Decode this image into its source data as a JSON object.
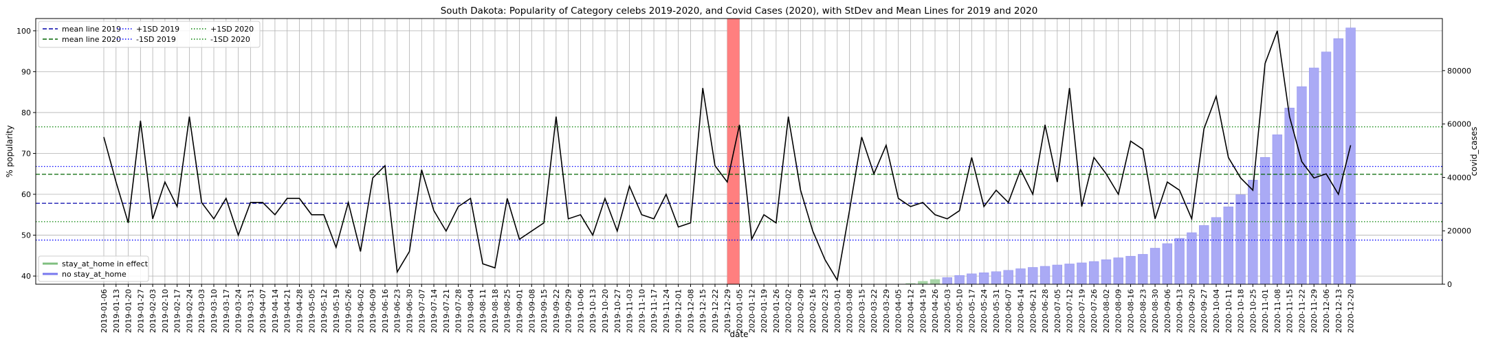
{
  "chart_data": {
    "type": "line",
    "title": "South Dakota: Popularity of Category celebs 2019-2020, and Covid Cases (2020), with StDev and Mean Lines for 2019 and 2020",
    "xlabel": "date",
    "ylabel": "% popularity",
    "y2label": "covid_cases",
    "ylim": [
      38,
      103
    ],
    "y2lim": [
      0,
      99500
    ],
    "yticks": [
      40,
      50,
      60,
      70,
      80,
      90,
      100
    ],
    "y2ticks": [
      0,
      20000,
      40000,
      60000,
      80000
    ],
    "dates": [
      "2019-01-06",
      "2019-01-13",
      "2019-01-20",
      "2019-01-27",
      "2019-02-03",
      "2019-02-10",
      "2019-02-17",
      "2019-02-24",
      "2019-03-03",
      "2019-03-10",
      "2019-03-17",
      "2019-03-24",
      "2019-03-31",
      "2019-04-07",
      "2019-04-14",
      "2019-04-21",
      "2019-04-28",
      "2019-05-05",
      "2019-05-12",
      "2019-05-19",
      "2019-05-26",
      "2019-06-02",
      "2019-06-09",
      "2019-06-16",
      "2019-06-23",
      "2019-06-30",
      "2019-07-07",
      "2019-07-14",
      "2019-07-21",
      "2019-07-28",
      "2019-08-04",
      "2019-08-11",
      "2019-08-18",
      "2019-08-25",
      "2019-09-01",
      "2019-09-08",
      "2019-09-15",
      "2019-09-22",
      "2019-09-29",
      "2019-10-06",
      "2019-10-13",
      "2019-10-20",
      "2019-10-27",
      "2019-11-03",
      "2019-11-10",
      "2019-11-17",
      "2019-11-24",
      "2019-12-01",
      "2019-12-08",
      "2019-12-15",
      "2019-12-22",
      "2019-12-29",
      "2020-01-05",
      "2020-01-12",
      "2020-01-19",
      "2020-01-26",
      "2020-02-02",
      "2020-02-09",
      "2020-02-16",
      "2020-02-23",
      "2020-03-01",
      "2020-03-08",
      "2020-03-15",
      "2020-03-22",
      "2020-03-29",
      "2020-04-05",
      "2020-04-12",
      "2020-04-19",
      "2020-04-26",
      "2020-05-03",
      "2020-05-10",
      "2020-05-17",
      "2020-05-24",
      "2020-05-31",
      "2020-06-07",
      "2020-06-14",
      "2020-06-21",
      "2020-06-28",
      "2020-07-05",
      "2020-07-12",
      "2020-07-19",
      "2020-07-26",
      "2020-08-02",
      "2020-08-09",
      "2020-08-16",
      "2020-08-23",
      "2020-08-30",
      "2020-09-06",
      "2020-09-13",
      "2020-09-20",
      "2020-09-27",
      "2020-10-04",
      "2020-10-11",
      "2020-10-18",
      "2020-10-25",
      "2020-11-01",
      "2020-11-08",
      "2020-11-15",
      "2020-11-22",
      "2020-11-29",
      "2020-12-06",
      "2020-12-13",
      "2020-12-20"
    ],
    "tick_labels": [
      "2019-01-06",
      "2019-01-13",
      "2019-01-20",
      "2019-01-27",
      "2019-02-03",
      "2019-02-10",
      "2019-02-17",
      "2019-02-24",
      "2019-03-03",
      "2019-03-10",
      "2019-03-17",
      "2019-03-24",
      "2019-03-31",
      "2019-04-07",
      "2019-04-14",
      "2019-04-21",
      "2019-04-28",
      "2019-05-05",
      "2019-05-12",
      "2019-05-19",
      "2019-05-26",
      "2019-06-02",
      "2019-06-09",
      "2019-06-16",
      "2019-06-23",
      "2019-06-30",
      "2019-07-07",
      "2019-07-14",
      "2019-07-21",
      "2019-07-28",
      "2019-08-04",
      "2019-08-11",
      "2019-08-18",
      "2019-08-25",
      "2019-09-01",
      "2019-09-08",
      "2019-09-15",
      "2019-09-22",
      "2019-09-29",
      "2019-10-06",
      "2019-10-13",
      "2019-10-20",
      "2019-10-27",
      "2019-11-03",
      "2019-11-10",
      "2019-11-17",
      "2019-11-24",
      "2019-12-01",
      "2019-12-08",
      "2019-12-15",
      "2019-12-22",
      "2019-12-29",
      "2020-01-05",
      "2020-01-12",
      "2020-01-19",
      "2020-01-26",
      "2020-02-02",
      "2020-02-09",
      "2020-02-16",
      "2020-02-23",
      "2020-03-01",
      "2020-03-08",
      "2020-03-15",
      "2020-03-22",
      "2020-03-29",
      "2020-04-05",
      "2020-04-12",
      "2020-04-19",
      "2020-04-26",
      "2020-05-03",
      "2020-05-10",
      "2020-05-17",
      "2020-05-24",
      "2020-05-31",
      "2020-06-07",
      "2020-06-14",
      "2020-06-21",
      "2020-06-28",
      "2020-07-05",
      "2020-07-12",
      "2020-07-19",
      "2020-07-26",
      "2020-08-02",
      "2020-08-09",
      "2020-08-16",
      "2020-08-23",
      "2020-08-30",
      "2020-09-06",
      "2020-09-13",
      "2020-09-20",
      "2020-09-27",
      "2020-10-04",
      "2020-10-11",
      "2020-10-18",
      "2020-10-25",
      "2020-11-01",
      "2020-11-08",
      "2020-11-15",
      "2020-11-22",
      "2020-11-29",
      "2020-12-06",
      "2020-12-13",
      "2020-12-20"
    ],
    "popularity": [
      74,
      63,
      53,
      78,
      54,
      63,
      57,
      79,
      58,
      54,
      59,
      50,
      58,
      58,
      55,
      59,
      59,
      55,
      55,
      47,
      58,
      46,
      64,
      67,
      41,
      46,
      66,
      56,
      51,
      57,
      59,
      43,
      42,
      59,
      49,
      51,
      53,
      79,
      54,
      55,
      50,
      59,
      51,
      62,
      55,
      54,
      60,
      52,
      53,
      86,
      67,
      63,
      77,
      49,
      55,
      53,
      79,
      61,
      51,
      44,
      39,
      56,
      74,
      65,
      72,
      59,
      57,
      58,
      55,
      54,
      56,
      69,
      57,
      61,
      58,
      66,
      60,
      77,
      63,
      86,
      57,
      69,
      65,
      60,
      73,
      71,
      54,
      63,
      61,
      54,
      76,
      84,
      69,
      64,
      61,
      92,
      100,
      79,
      68,
      64,
      65,
      60,
      72
    ],
    "covid_cases": [
      0,
      0,
      0,
      0,
      0,
      0,
      0,
      0,
      0,
      0,
      0,
      0,
      0,
      0,
      0,
      0,
      0,
      0,
      0,
      0,
      0,
      0,
      0,
      0,
      0,
      0,
      0,
      0,
      0,
      0,
      0,
      0,
      0,
      0,
      0,
      0,
      0,
      0,
      0,
      0,
      0,
      0,
      0,
      0,
      0,
      0,
      0,
      0,
      0,
      0,
      0,
      0,
      0,
      0,
      0,
      0,
      0,
      0,
      0,
      0,
      0,
      0,
      0,
      0,
      0,
      0,
      300,
      1100,
      1800,
      2500,
      3300,
      3900,
      4300,
      4700,
      5200,
      5800,
      6300,
      6700,
      7200,
      7600,
      8000,
      8500,
      9200,
      9900,
      10500,
      11200,
      13500,
      15200,
      17200,
      19300,
      22000,
      25000,
      29000,
      33500,
      39000,
      47500,
      56000,
      66000,
      74000,
      81000,
      87000,
      92000,
      96000
    ],
    "stay_at_home_flags": [
      0,
      0,
      0,
      0,
      0,
      0,
      0,
      0,
      0,
      0,
      0,
      0,
      0,
      0,
      0,
      0,
      0,
      0,
      0,
      0,
      0,
      0,
      0,
      0,
      0,
      0,
      0,
      0,
      0,
      0,
      0,
      0,
      0,
      0,
      0,
      0,
      0,
      0,
      0,
      0,
      0,
      0,
      0,
      0,
      0,
      0,
      0,
      0,
      0,
      0,
      0,
      0,
      0,
      0,
      0,
      0,
      0,
      0,
      0,
      0,
      0,
      0,
      0,
      0,
      0,
      0,
      1,
      1,
      1,
      0,
      0,
      0,
      0,
      0,
      0,
      0,
      0,
      0,
      0,
      0,
      0,
      0,
      0,
      0,
      0,
      0,
      0,
      0,
      0,
      0,
      0,
      0,
      0,
      0,
      0,
      0,
      0,
      0,
      0,
      0,
      0,
      0,
      0
    ],
    "highlight_span": [
      "2019-12-29",
      "2020-01-05"
    ],
    "reference_lines": [
      {
        "label": "mean line 2019",
        "value": 57.8,
        "color": "#0000aa",
        "style": "dashed"
      },
      {
        "label": "mean line 2020",
        "value": 64.9,
        "color": "#006400",
        "style": "dashed"
      },
      {
        "label": "+1SD 2019",
        "value": 66.8,
        "color": "#0000ff",
        "style": "dotted"
      },
      {
        "label": "-1SD 2019",
        "value": 48.8,
        "color": "#0000ff",
        "style": "dotted"
      },
      {
        "label": "+1SD 2020",
        "value": 76.5,
        "color": "#008000",
        "style": "dotted"
      },
      {
        "label": "-1SD 2020",
        "value": 53.3,
        "color": "#008000",
        "style": "dotted"
      }
    ],
    "legend_top": [
      {
        "label": "mean line 2019",
        "color": "#0000aa",
        "style": "dashed"
      },
      {
        "label": "mean line 2020",
        "color": "#006400",
        "style": "dashed"
      },
      {
        "label": "+1SD 2019",
        "color": "#0000ff",
        "style": "dotted"
      },
      {
        "label": "-1SD 2019",
        "color": "#0000ff",
        "style": "dotted"
      },
      {
        "label": "+1SD 2020",
        "color": "#008000",
        "style": "dotted"
      },
      {
        "label": "-1SD 2020",
        "color": "#008000",
        "style": "dotted"
      }
    ],
    "legend_bottom": [
      {
        "label": "stay_at_home in effect",
        "color": "#7fbf7f"
      },
      {
        "label": "no stay_at_home",
        "color": "#7777ee"
      }
    ],
    "colors": {
      "popularity_line": "#000000",
      "bar_no_stay": "#aaaaf5",
      "bar_no_stay_edge": "#8f8fee",
      "bar_stay": "#a8d5a8",
      "highlight": "#ff7f7f",
      "grid": "#b0b0b0"
    },
    "grid": true,
    "legend_placement": [
      "top-left",
      "bottom-left"
    ]
  }
}
